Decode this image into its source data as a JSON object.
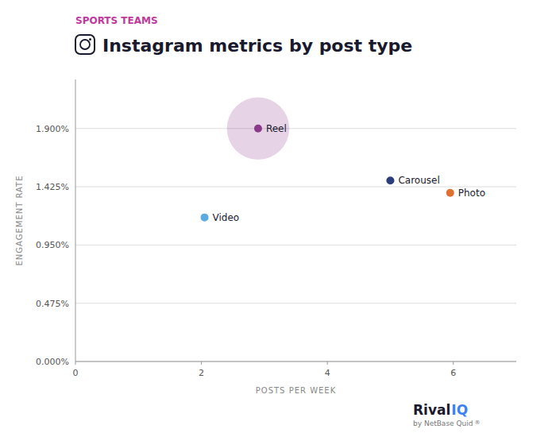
{
  "chart_data": {
    "type": "scatter",
    "title": "Instagram metrics by post type",
    "subtitle": "SPORTS TEAMS",
    "x_label": "POSTS PER WEEK",
    "y_label": "ENGAGEMENT RATE",
    "series": [
      {
        "name": "Reel",
        "color": "#8B3A8B",
        "x": [
          2.9
        ],
        "values": [
          0.019
        ],
        "sizes": [
          3200
        ]
      },
      {
        "name": "Carousel",
        "color": "#2c3e7a",
        "x": [
          5.0
        ],
        "values": [
          0.01475
        ]
      },
      {
        "name": "Photo",
        "color": "#e07030",
        "x": [
          5.95
        ],
        "values": [
          0.01375
        ]
      },
      {
        "name": "Video",
        "color": "#5aace0",
        "x": [
          2.05
        ],
        "values": [
          0.01175
        ]
      }
    ],
    "xlim": [
      0,
      7
    ],
    "ylim": [
      0,
      0.023
    ],
    "xticks": [
      0,
      2,
      4,
      6
    ],
    "yticks": [
      {
        "value": 0.0,
        "label": "0.000%"
      },
      {
        "value": 0.00475,
        "label": "0.475%"
      },
      {
        "value": 0.0095,
        "label": "0.950%"
      },
      {
        "value": 0.01425,
        "label": "1.425%"
      },
      {
        "value": 0.019,
        "label": "1.900%"
      }
    ],
    "grid": true,
    "annotations": [
      "Rival",
      "IQ",
      "by NetBase Quid",
      "®"
    ]
  }
}
